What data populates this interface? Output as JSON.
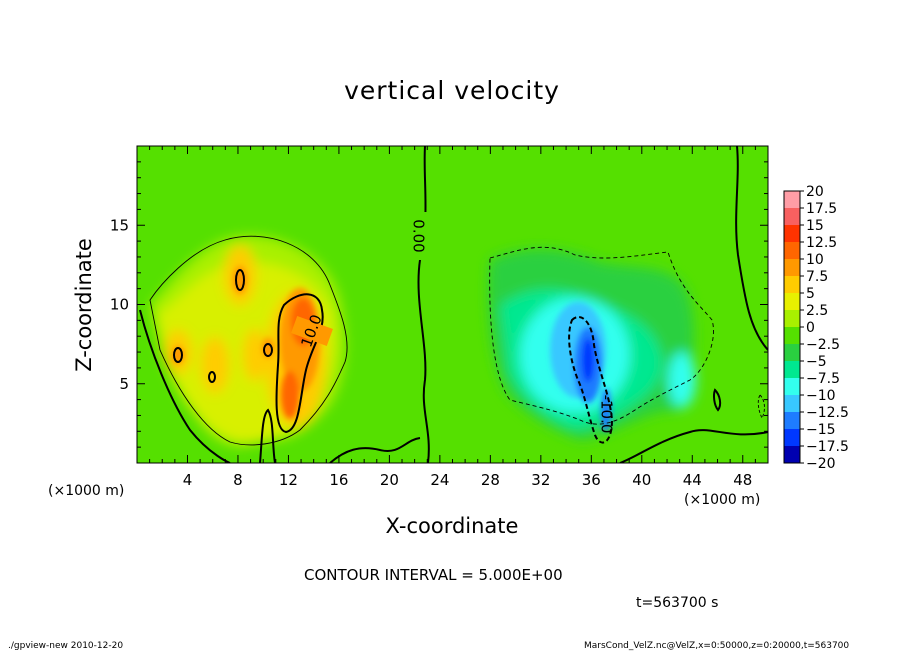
{
  "chart_data": {
    "type": "heatmap",
    "title": "vertical velocity",
    "xlabel": "X-coordinate",
    "ylabel": "Z-coordinate",
    "x_unit": "(×1000 m)",
    "y_unit": "(×1000 m)",
    "xlim": [
      0,
      50
    ],
    "ylim": [
      0,
      20
    ],
    "x_ticks": [
      "4",
      "8",
      "12",
      "16",
      "20",
      "24",
      "28",
      "32",
      "36",
      "40",
      "44",
      "48"
    ],
    "y_ticks": [
      "5",
      "10",
      "15"
    ],
    "colorbar": {
      "levels": [
        "20",
        "17.5",
        "15",
        "12.5",
        "10",
        "7.5",
        "5",
        "2.5",
        "0",
        "−2.5",
        "−5",
        "−7.5",
        "−10",
        "−12.5",
        "−15",
        "−17.5",
        "−20"
      ],
      "colors": [
        "#ff9da6",
        "#f86060",
        "#ff3300",
        "#ff6600",
        "#ff9900",
        "#ffcc00",
        "#e8f000",
        "#a8f000",
        "#55e000",
        "#2ad040",
        "#00e890",
        "#33ffee",
        "#38c8ff",
        "#1e7cff",
        "#0038ff",
        "#0000b0",
        "#6600cc"
      ]
    },
    "contour_labels": [
      "0.00",
      "10.0",
      "-10.0"
    ],
    "contour_interval": "CONTOUR INTERVAL = 5.000E+00",
    "time": "t=563700 s",
    "footer_left": "./gpview-new  2010-12-20",
    "footer_right": "MarsCond_VelZ.nc@VelZ,x=0:50000,z=0:20000,t=563700"
  }
}
